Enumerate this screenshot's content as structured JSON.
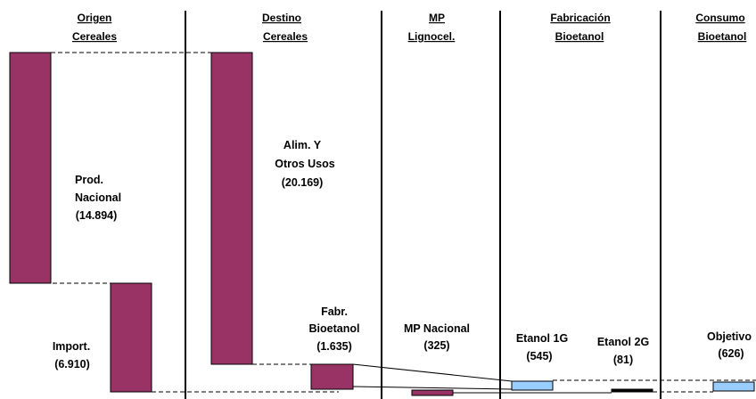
{
  "columns": [
    {
      "line1": "Origen",
      "line2": "Cereales"
    },
    {
      "line1": "Destino",
      "line2": "Cereales"
    },
    {
      "line1": "MP",
      "line2": "Lignocel."
    },
    {
      "line1": "Fabricación",
      "line2": "Bioetanol"
    },
    {
      "line1": "Consumo",
      "line2": "Bioetanol"
    }
  ],
  "blocks": {
    "prod_nacional": {
      "line1": "Prod.",
      "line2": "Nacional",
      "value": "(14.894)"
    },
    "import": {
      "line1": "Import.",
      "value": "(6.910)"
    },
    "alim_otros": {
      "line1": "Alim. Y",
      "line2": "Otros Usos",
      "value": "(20.169)"
    },
    "fabr_bioetanol": {
      "line1": "Fabr.",
      "line2": "Bioetanol",
      "value": "(1.635)"
    },
    "mp_nacional": {
      "line1": "MP Nacional",
      "value": "(325)"
    },
    "etanol_1g": {
      "line1": "Etanol 1G",
      "value": "(545)"
    },
    "etanol_2g": {
      "line1": "Etanol 2G",
      "value": "(81)"
    },
    "objetivo": {
      "line1": "Objetivo",
      "value": "(626)"
    }
  },
  "colors": {
    "cereal_block": "#993366",
    "ethanol_block": "#99ccff",
    "line": "#000000"
  }
}
